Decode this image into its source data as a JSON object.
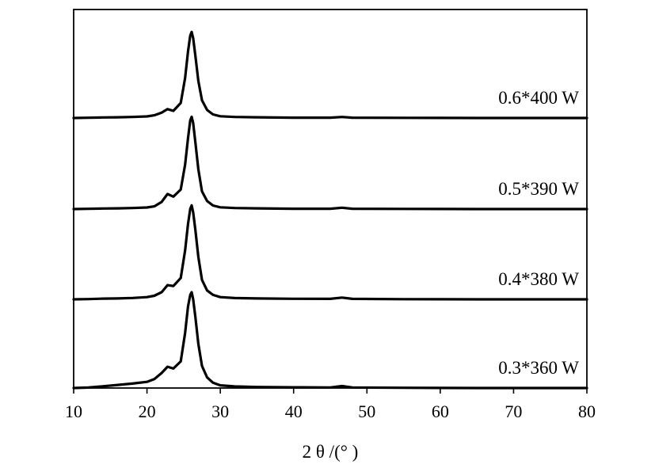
{
  "chart_data": {
    "type": "line",
    "title": "",
    "xlabel": "2 θ /(°  )",
    "ylabel": "",
    "xlim": [
      10,
      80
    ],
    "xticks": [
      10,
      20,
      30,
      40,
      50,
      60,
      70,
      80
    ],
    "tick_labels": [
      "10",
      "20",
      "30",
      "40",
      "50",
      "60",
      "70",
      "80"
    ],
    "y_ticks_shown": false,
    "grid": false,
    "legend": "none",
    "stacked_offset": true,
    "series": [
      {
        "name": "0.6*400 W",
        "x": [
          10,
          12,
          14,
          16,
          18,
          20,
          21,
          22,
          22.8,
          23.6,
          24.6,
          25.2,
          25.6,
          25.9,
          26.1,
          26.3,
          26.6,
          27,
          27.5,
          28.2,
          29,
          30,
          32,
          35,
          40,
          45,
          46.6,
          48,
          55,
          60,
          65,
          70,
          75,
          80
        ],
        "y": [
          0.0,
          0.003,
          0.006,
          0.008,
          0.012,
          0.018,
          0.03,
          0.06,
          0.1,
          0.08,
          0.17,
          0.45,
          0.75,
          0.93,
          0.97,
          0.9,
          0.7,
          0.42,
          0.2,
          0.09,
          0.04,
          0.02,
          0.012,
          0.008,
          0.004,
          0.004,
          0.012,
          0.004,
          0.002,
          0.001,
          0.0,
          0.0,
          0.0,
          0.0
        ]
      },
      {
        "name": "0.5*390 W",
        "x": [
          10,
          12,
          14,
          16,
          18,
          20,
          21,
          22,
          22.8,
          23.6,
          24.6,
          25.2,
          25.6,
          25.9,
          26.1,
          26.3,
          26.6,
          27,
          27.5,
          28.2,
          29,
          30,
          32,
          35,
          40,
          45,
          46.6,
          48,
          55,
          60,
          65,
          70,
          75,
          80
        ],
        "y": [
          0.0,
          0.003,
          0.006,
          0.008,
          0.012,
          0.018,
          0.03,
          0.08,
          0.17,
          0.14,
          0.22,
          0.5,
          0.8,
          1.0,
          1.04,
          0.97,
          0.75,
          0.45,
          0.2,
          0.09,
          0.04,
          0.02,
          0.012,
          0.008,
          0.004,
          0.004,
          0.015,
          0.004,
          0.002,
          0.001,
          0.0,
          0.0,
          0.0,
          0.0
        ]
      },
      {
        "name": "0.4*380 W",
        "x": [
          10,
          12,
          14,
          16,
          18,
          20,
          21,
          22,
          22.8,
          23.6,
          24.6,
          25.2,
          25.6,
          25.9,
          26.1,
          26.3,
          26.6,
          27,
          27.5,
          28.2,
          29,
          30,
          32,
          35,
          40,
          45,
          46.6,
          48,
          55,
          60,
          65,
          70,
          75,
          80
        ],
        "y": [
          0.0,
          0.003,
          0.008,
          0.01,
          0.015,
          0.025,
          0.04,
          0.08,
          0.16,
          0.15,
          0.24,
          0.55,
          0.85,
          1.02,
          1.06,
          0.98,
          0.78,
          0.48,
          0.22,
          0.1,
          0.05,
          0.025,
          0.014,
          0.01,
          0.006,
          0.005,
          0.02,
          0.005,
          0.002,
          0.001,
          0.0,
          0.0,
          0.0,
          0.0
        ]
      },
      {
        "name": "0.3*360 W",
        "x": [
          10,
          12,
          14,
          16,
          18,
          20,
          21,
          22,
          22.8,
          23.6,
          24.6,
          25.2,
          25.6,
          25.9,
          26.1,
          26.3,
          26.6,
          27,
          27.5,
          28.2,
          29,
          30,
          32,
          35,
          40,
          45,
          46.6,
          48,
          55,
          60,
          65,
          70,
          75,
          80
        ],
        "y": [
          0.0,
          0.005,
          0.02,
          0.035,
          0.05,
          0.07,
          0.1,
          0.17,
          0.24,
          0.22,
          0.3,
          0.62,
          0.92,
          1.05,
          1.08,
          1.0,
          0.8,
          0.5,
          0.25,
          0.12,
          0.06,
          0.03,
          0.018,
          0.012,
          0.008,
          0.006,
          0.022,
          0.006,
          0.003,
          0.001,
          0.0,
          0.0,
          0.0,
          0.0
        ]
      }
    ]
  }
}
